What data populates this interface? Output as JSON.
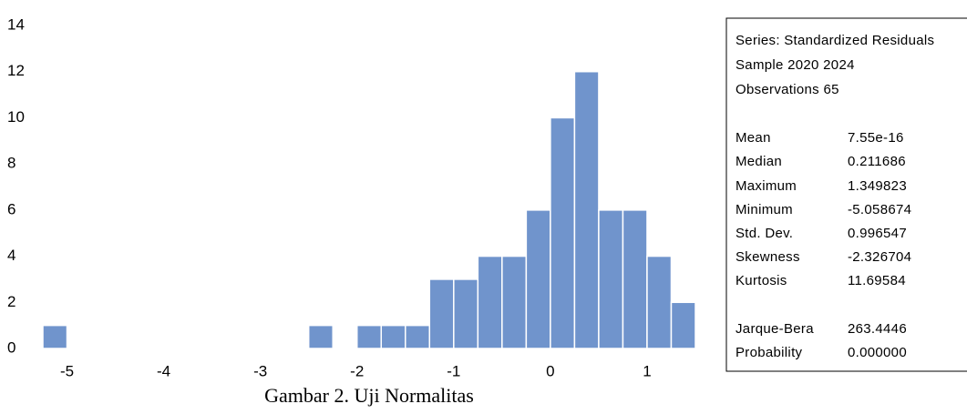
{
  "chart_data": {
    "type": "histogram",
    "bins": [
      -5.25,
      -5,
      -4.75,
      -4.5,
      -4.25,
      -4,
      -3.75,
      -3.5,
      -3.25,
      -3,
      -2.75,
      -2.5,
      -2.25,
      -2,
      -1.75,
      -1.5,
      -1.25,
      -1,
      -0.75,
      -0.5,
      -0.25,
      0,
      0.25,
      0.5,
      0.75,
      1,
      1.25,
      1.5
    ],
    "counts": [
      1,
      0,
      0,
      0,
      0,
      0,
      0,
      0,
      0,
      0,
      0,
      1,
      0,
      1,
      1,
      1,
      3,
      3,
      4,
      4,
      6,
      10,
      12,
      6,
      6,
      4,
      2
    ],
    "color": "#7094cc",
    "xlim": [
      -5.25,
      1.5
    ],
    "xticks": [
      -5,
      -4,
      -3,
      -2,
      -1,
      0,
      1
    ],
    "ylim": [
      0,
      14
    ],
    "yticks": [
      0,
      2,
      4,
      6,
      8,
      10,
      12,
      14
    ],
    "grid": false
  },
  "stats": {
    "header": [
      "Series: Standardized Residuals",
      "Sample 2020 2024",
      "Observations 65"
    ],
    "rows": [
      {
        "label": "Mean",
        "value": "7.55e-16"
      },
      {
        "label": "Median",
        "value": "0.211686"
      },
      {
        "label": "Maximum",
        "value": "1.349823"
      },
      {
        "label": "Minimum",
        "value": "-5.058674"
      },
      {
        "label": "Std. Dev.",
        "value": "0.996547"
      },
      {
        "label": "Skewness",
        "value": "-2.326704"
      },
      {
        "label": "Kurtosis",
        "value": "11.69584"
      },
      {
        "label": "Jarque-Bera",
        "value": "263.4446"
      },
      {
        "label": "Probability",
        "value": "0.000000"
      }
    ]
  },
  "caption": "Gambar 2. Uji Normalitas"
}
